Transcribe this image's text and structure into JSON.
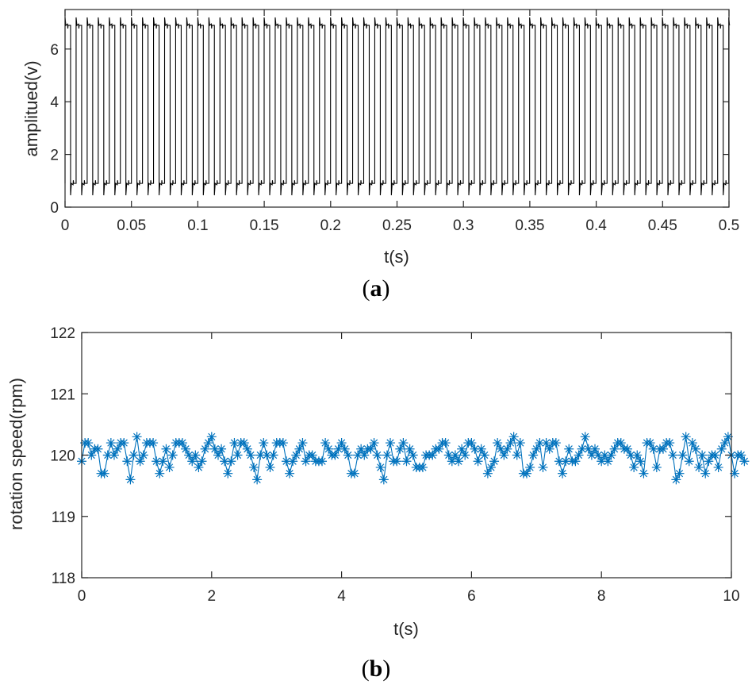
{
  "chart_data": [
    {
      "type": "line",
      "panel_label": "a",
      "xlabel": "t(s)",
      "ylabel": "amplitued(v)",
      "xlim": [
        0,
        0.5
      ],
      "ylim": [
        0,
        7.5
      ],
      "xticks": [
        "0",
        "0.05",
        "0.1",
        "0.15",
        "0.2",
        "0.25",
        "0.3",
        "0.35",
        "0.4",
        "0.45",
        "0.5"
      ],
      "yticks": [
        "0",
        "2",
        "4",
        "6"
      ],
      "series": [
        {
          "color": "#000000",
          "signal": "square wave",
          "high_level": 6.9,
          "low_level": 0.9,
          "period": 0.00833,
          "duty": 0.5,
          "spike_high": 7.2,
          "spike_low": 0.45
        }
      ],
      "grid": false,
      "box": true
    },
    {
      "type": "line",
      "panel_label": "b",
      "xlabel": "t(s)",
      "ylabel": "rotation speed(rpm)",
      "xlim": [
        0,
        10
      ],
      "ylim": [
        118,
        122
      ],
      "xticks": [
        "0",
        "2",
        "4",
        "6",
        "8",
        "10"
      ],
      "yticks": [
        "118",
        "119",
        "120",
        "121",
        "122"
      ],
      "marker": "asterisk",
      "series": [
        {
          "color": "#0072BD",
          "x_start": 0,
          "x_step": 0.05,
          "values": [
            119.9,
            120.2,
            120.2,
            120.0,
            120.1,
            120.1,
            119.7,
            119.7,
            120.0,
            120.2,
            120.0,
            120.1,
            120.2,
            120.2,
            119.9,
            119.6,
            120.0,
            120.3,
            119.9,
            120.0,
            120.2,
            120.2,
            120.2,
            119.9,
            119.7,
            119.9,
            120.1,
            119.8,
            120.0,
            120.2,
            120.2,
            120.2,
            120.1,
            120.0,
            119.9,
            120.0,
            119.8,
            119.9,
            120.1,
            120.2,
            120.3,
            120.1,
            120.0,
            120.1,
            119.9,
            119.7,
            119.9,
            120.2,
            120.0,
            120.2,
            120.2,
            120.1,
            120.0,
            119.8,
            119.6,
            120.0,
            120.2,
            120.0,
            119.8,
            120.0,
            120.2,
            120.2,
            120.2,
            119.9,
            119.7,
            119.9,
            120.0,
            120.1,
            120.2,
            119.9,
            120.0,
            120.0,
            119.9,
            119.9,
            119.9,
            120.2,
            120.1,
            120.0,
            120.0,
            120.1,
            120.2,
            120.1,
            120.0,
            119.7,
            119.7,
            120.0,
            120.1,
            120.0,
            120.1,
            120.1,
            120.2,
            120.0,
            119.8,
            119.6,
            120.0,
            120.2,
            119.9,
            119.9,
            120.1,
            120.2,
            119.9,
            120.1,
            120.0,
            119.8,
            119.8,
            119.8,
            120.0,
            120.0,
            120.0,
            120.1,
            120.1,
            120.2,
            120.2,
            120.0,
            119.9,
            120.0,
            119.9,
            120.1,
            120.0,
            120.2,
            120.2,
            120.1,
            119.9,
            120.1,
            120.0,
            119.7,
            119.8,
            119.9,
            120.2,
            120.1,
            120.0,
            120.1,
            120.2,
            120.3,
            120.0,
            120.2,
            119.7,
            119.7,
            119.8,
            120.0,
            120.1,
            120.2,
            119.8,
            120.2,
            120.1,
            120.2,
            120.2,
            119.9,
            119.7,
            119.9,
            120.1,
            119.9,
            119.9,
            120.0,
            120.1,
            120.3,
            120.1,
            120.0,
            120.1,
            120.0,
            119.9,
            120.0,
            119.9,
            120.0,
            120.1,
            120.2,
            120.2,
            120.1,
            120.1,
            120.0,
            119.8,
            120.0,
            119.9,
            119.7,
            120.2,
            120.2,
            120.1,
            119.8,
            120.1,
            120.1,
            120.2,
            120.2,
            120.0,
            119.6,
            119.7,
            120.0,
            120.3,
            119.9,
            120.2,
            120.1,
            119.8,
            120.0,
            119.7,
            119.9,
            120.0,
            120.0,
            119.8,
            120.1,
            120.2,
            120.3,
            120.0,
            119.7,
            120.0,
            120.0,
            119.9
          ]
        }
      ],
      "grid": false,
      "box": true
    }
  ]
}
